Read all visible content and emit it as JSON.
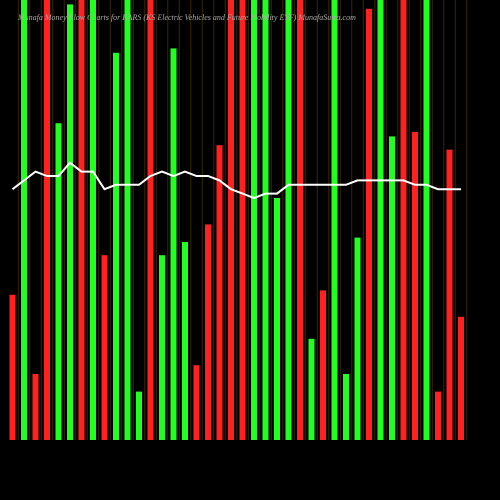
{
  "chart_data": {
    "type": "bar",
    "title": "Munafa Money Flow Charts for KARS (KS Electric Vehicles and Future Mobility ETF) MunafaSutra.com",
    "categories": [
      null,
      null,
      null,
      null,
      null,
      null,
      null,
      null,
      null,
      null,
      null,
      null,
      null,
      null,
      null,
      null,
      null,
      null,
      null,
      null,
      null,
      null,
      null,
      null,
      null,
      null,
      null,
      null,
      null,
      null,
      null,
      null,
      null,
      null,
      null,
      null,
      null,
      null,
      null,
      null
    ],
    "values": [
      33,
      100,
      15,
      100,
      72,
      99,
      100,
      100,
      42,
      88,
      100,
      11,
      100,
      42,
      89,
      45,
      17,
      49,
      67,
      100,
      100,
      100,
      100,
      55,
      100,
      100,
      23,
      34,
      100,
      15,
      46,
      98,
      100,
      69,
      100,
      70,
      100,
      11,
      66,
      28
    ],
    "colors": [
      "#ff2020",
      "#20ff20",
      "#ff2020",
      "#ff2020",
      "#20ff20",
      "#20ff20",
      "#ff2020",
      "#20ff20",
      "#ff2020",
      "#20ff20",
      "#20ff20",
      "#20ff20",
      "#ff2020",
      "#20ff20",
      "#20ff20",
      "#20ff20",
      "#ff2020",
      "#ff2020",
      "#ff2020",
      "#ff2020",
      "#ff2020",
      "#20ff20",
      "#20ff20",
      "#20ff20",
      "#20ff20",
      "#ff2020",
      "#20ff20",
      "#ff2020",
      "#20ff20",
      "#20ff20",
      "#20ff20",
      "#ff2020",
      "#20ff20",
      "#20ff20",
      "#ff2020",
      "#ff2020",
      "#20ff20",
      "#ff2020",
      "#ff2020",
      "#ff2020"
    ],
    "line": {
      "color": "#ffffff",
      "values": [
        57,
        59,
        61,
        60,
        60,
        63,
        61,
        61,
        57,
        58,
        58,
        58,
        60,
        61,
        60,
        61,
        60,
        60,
        59,
        57,
        56,
        55,
        56,
        56,
        58,
        58,
        58,
        58,
        58,
        58,
        59,
        59,
        59,
        59,
        59,
        58,
        58,
        57,
        57,
        57
      ]
    },
    "ylim": [
      0,
      100
    ]
  }
}
